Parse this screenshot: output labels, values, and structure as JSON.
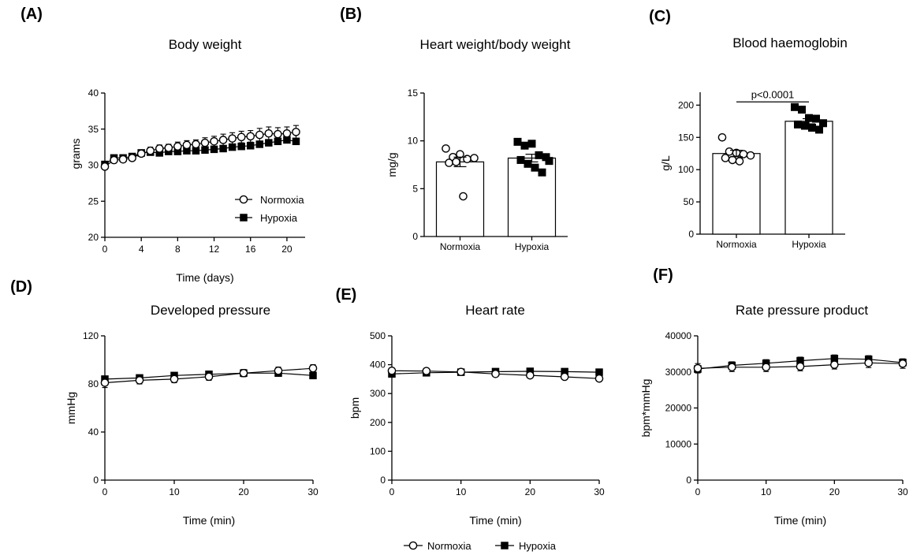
{
  "chart_data": [
    {
      "panel": "(A)",
      "type": "line",
      "title": "Body weight",
      "xlabel": "Time (days)",
      "ylabel": "grams",
      "xlim": [
        0,
        22
      ],
      "ylim": [
        20,
        40
      ],
      "xticks": [
        0,
        4,
        8,
        12,
        16,
        20
      ],
      "yticks": [
        20,
        25,
        30,
        35,
        40
      ],
      "legend": "inside-bottom-right",
      "x": [
        0,
        1,
        2,
        3,
        4,
        5,
        6,
        7,
        8,
        9,
        10,
        11,
        12,
        13,
        14,
        15,
        16,
        17,
        18,
        19,
        20,
        21
      ],
      "series": [
        {
          "name": "Normoxia",
          "marker": "open-circle",
          "values": [
            29.8,
            30.7,
            30.8,
            31.0,
            31.6,
            32.0,
            32.3,
            32.4,
            32.6,
            32.8,
            32.9,
            33.1,
            33.3,
            33.5,
            33.7,
            33.9,
            34.0,
            34.2,
            34.4,
            34.3,
            34.4,
            34.6
          ],
          "error": [
            0.4,
            0.4,
            0.4,
            0.4,
            0.4,
            0.5,
            0.5,
            0.5,
            0.6,
            0.6,
            0.6,
            0.7,
            0.7,
            0.8,
            0.8,
            0.8,
            0.8,
            0.9,
            0.9,
            0.9,
            0.9,
            0.9
          ]
        },
        {
          "name": "Hypoxia",
          "marker": "filled-square",
          "values": [
            30.1,
            31.0,
            31.0,
            31.2,
            31.7,
            31.8,
            31.7,
            31.9,
            31.9,
            32.0,
            32.0,
            32.1,
            32.2,
            32.3,
            32.5,
            32.6,
            32.7,
            32.9,
            33.1,
            33.3,
            33.5,
            33.3
          ],
          "error": [
            0.3,
            0.3,
            0.3,
            0.3,
            0.3,
            0.3,
            0.3,
            0.3,
            0.3,
            0.3,
            0.3,
            0.3,
            0.3,
            0.3,
            0.4,
            0.4,
            0.4,
            0.4,
            0.4,
            0.4,
            0.4,
            0.4
          ]
        }
      ]
    },
    {
      "panel": "(B)",
      "type": "bar",
      "title": "Heart weight/body weight",
      "xlabel": "",
      "ylabel": "mg/g",
      "ylim": [
        0,
        15
      ],
      "yticks": [
        0,
        5,
        10,
        15
      ],
      "categories": [
        "Normoxia",
        "Hypoxia"
      ],
      "values": [
        7.8,
        8.2
      ],
      "error": [
        0.5,
        0.4
      ],
      "points": [
        [
          9.2,
          8.3,
          8.6,
          8.1,
          8.2,
          7.7,
          7.8,
          4.2
        ],
        [
          9.9,
          9.5,
          9.7,
          8.5,
          8.3,
          8.0,
          7.6,
          7.2,
          6.7,
          7.9
        ]
      ],
      "point_markers": [
        "open-circle",
        "filled-square"
      ]
    },
    {
      "panel": "(C)",
      "type": "bar",
      "title": "Blood haemoglobin",
      "xlabel": "",
      "ylabel": "g/L",
      "ylim": [
        0,
        220
      ],
      "yticks": [
        0,
        50,
        100,
        150,
        200
      ],
      "categories": [
        "Normoxia",
        "Hypoxia"
      ],
      "values": [
        125,
        175
      ],
      "error": [
        5,
        4
      ],
      "points": [
        [
          150,
          128,
          126,
          124,
          122,
          118,
          115,
          113
        ],
        [
          197,
          193,
          180,
          179,
          172,
          170,
          168,
          165,
          162
        ]
      ],
      "point_markers": [
        "open-circle",
        "filled-square"
      ],
      "annotation": "p<0.0001"
    },
    {
      "panel": "(D)",
      "type": "line",
      "title": "Developed pressure",
      "xlabel": "Time (min)",
      "ylabel": "mmHg",
      "xlim": [
        0,
        30
      ],
      "ylim": [
        0,
        120
      ],
      "xticks": [
        0,
        10,
        20,
        30
      ],
      "yticks": [
        0,
        40,
        80,
        120
      ],
      "x": [
        0,
        5,
        10,
        15,
        20,
        25,
        30
      ],
      "series": [
        {
          "name": "Normoxia",
          "marker": "open-circle",
          "values": [
            81,
            83,
            84,
            86,
            89,
            91,
            93
          ],
          "error": [
            4,
            3,
            3,
            3,
            3,
            3,
            3
          ]
        },
        {
          "name": "Hypoxia",
          "marker": "filled-square",
          "values": [
            84,
            85,
            87,
            88,
            89,
            89,
            87
          ],
          "error": [
            2,
            2,
            2,
            2,
            2,
            2,
            2
          ]
        }
      ]
    },
    {
      "panel": "(E)",
      "type": "line",
      "title": "Heart rate",
      "xlabel": "Time (min)",
      "ylabel": "bpm",
      "xlim": [
        0,
        30
      ],
      "ylim": [
        0,
        500
      ],
      "xticks": [
        0,
        10,
        20,
        30
      ],
      "yticks": [
        0,
        100,
        200,
        300,
        400,
        500
      ],
      "x": [
        0,
        5,
        10,
        15,
        20,
        25,
        30
      ],
      "series": [
        {
          "name": "Normoxia",
          "marker": "open-circle",
          "values": [
            379,
            378,
            375,
            368,
            363,
            358,
            352
          ],
          "error": [
            8,
            8,
            8,
            8,
            8,
            8,
            8
          ]
        },
        {
          "name": "Hypoxia",
          "marker": "filled-square",
          "values": [
            368,
            372,
            374,
            376,
            377,
            376,
            374
          ],
          "error": [
            8,
            8,
            8,
            8,
            8,
            8,
            8
          ]
        }
      ]
    },
    {
      "panel": "(F)",
      "type": "line",
      "title": "Rate pressure product",
      "xlabel": "Time (min)",
      "ylabel": "bpm*mmHg",
      "xlim": [
        0,
        30
      ],
      "ylim": [
        0,
        40000
      ],
      "xticks": [
        0,
        10,
        20,
        30
      ],
      "yticks": [
        0,
        10000,
        20000,
        30000,
        40000
      ],
      "x": [
        0,
        5,
        10,
        15,
        20,
        25,
        30
      ],
      "series": [
        {
          "name": "Normoxia",
          "marker": "open-circle",
          "values": [
            31000,
            31300,
            31300,
            31500,
            32000,
            32500,
            32300
          ],
          "error": [
            1300,
            1200,
            1200,
            1200,
            1200,
            1300,
            1300
          ]
        },
        {
          "name": "Hypoxia",
          "marker": "filled-square",
          "values": [
            30800,
            31800,
            32400,
            33100,
            33700,
            33500,
            32600
          ],
          "error": [
            1000,
            1000,
            1000,
            1000,
            1000,
            1000,
            1000
          ]
        }
      ]
    }
  ],
  "shared_legend": {
    "items": [
      "Normoxia",
      "Hypoxia"
    ]
  }
}
